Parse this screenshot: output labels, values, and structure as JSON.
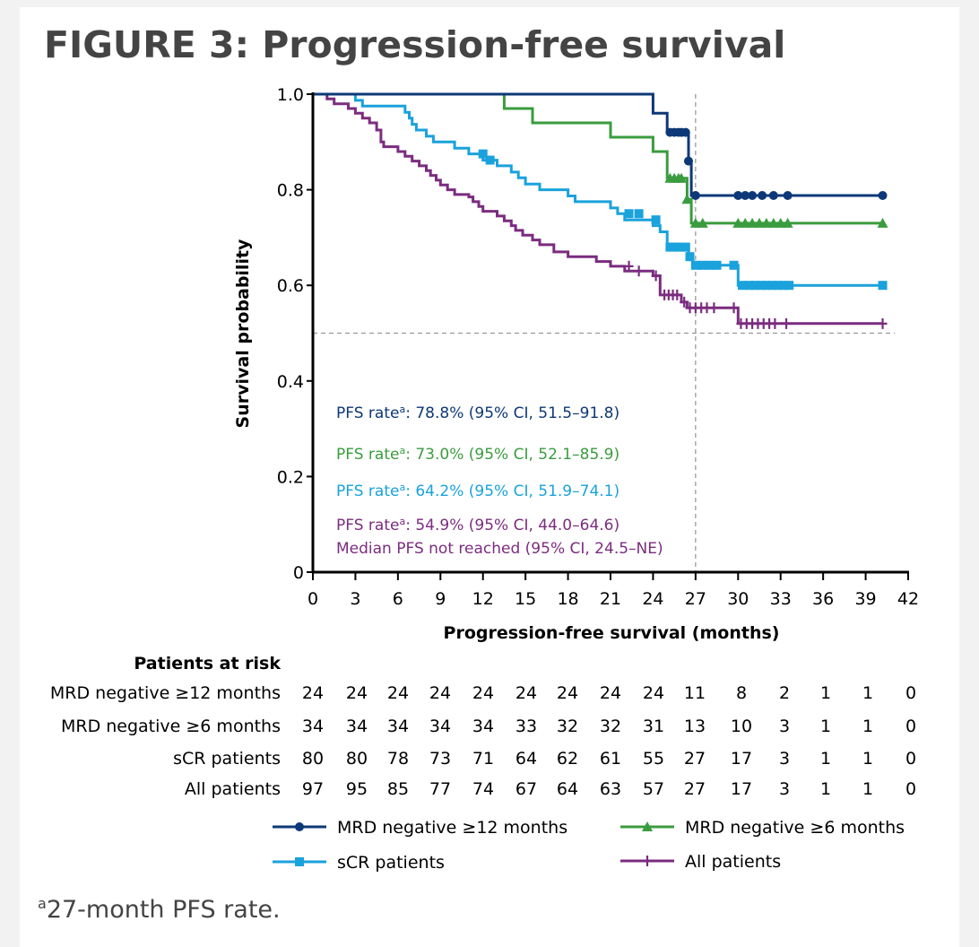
{
  "title": "FIGURE 3: Progression-free survival",
  "footnote": {
    "marker": "a",
    "text": "27-month PFS rate."
  },
  "colors": {
    "mrd12": "#0d3877",
    "mrd6": "#3a9c3e",
    "scr": "#1aa2dc",
    "all": "#7b2c7f",
    "axis": "#000000",
    "ref_line": "#999999",
    "text": "#000000"
  },
  "risk_table": {
    "header": "Patients at risk",
    "rows": [
      {
        "label": "MRD negative ≥12 months",
        "values": [
          "24",
          "24",
          "24",
          "24",
          "24",
          "24",
          "24",
          "24",
          "24",
          "11",
          "8",
          "2",
          "1",
          "1",
          "0"
        ]
      },
      {
        "label": "MRD negative ≥6 months",
        "values": [
          "34",
          "34",
          "34",
          "34",
          "34",
          "33",
          "32",
          "32",
          "31",
          "13",
          "10",
          "3",
          "1",
          "1",
          "0"
        ]
      },
      {
        "label": "sCR patients",
        "values": [
          "80",
          "80",
          "78",
          "73",
          "71",
          "64",
          "62",
          "61",
          "55",
          "27",
          "17",
          "3",
          "1",
          "1",
          "0"
        ]
      },
      {
        "label": "All patients",
        "values": [
          "97",
          "95",
          "85",
          "77",
          "74",
          "67",
          "64",
          "63",
          "57",
          "27",
          "17",
          "3",
          "1",
          "1",
          "0"
        ]
      }
    ]
  },
  "chart_data": {
    "type": "line",
    "subtype": "kaplan-meier",
    "xlabel": "Progression-free survival (months)",
    "ylabel": "Survival probability",
    "xlim": [
      0,
      42
    ],
    "ylim": [
      0,
      1.0
    ],
    "xticks": [
      0,
      3,
      6,
      9,
      12,
      15,
      18,
      21,
      24,
      27,
      30,
      33,
      36,
      39,
      42
    ],
    "yticks": [
      {
        "value": 0,
        "label": "0"
      },
      {
        "value": 0.2,
        "label": "0.2"
      },
      {
        "value": 0.4,
        "label": "0.4"
      },
      {
        "value": 0.6,
        "label": "0.6"
      },
      {
        "value": 0.8,
        "label": "0.8"
      },
      {
        "value": 1.0,
        "label": "1.0"
      }
    ],
    "grid": false,
    "reference_lines": [
      {
        "axis": "x",
        "value": 27,
        "style": "dashed"
      },
      {
        "axis": "y",
        "value": 0.5,
        "style": "dashed"
      }
    ],
    "annotations": [
      {
        "series": "MRD negative ≥12 months",
        "text": "PFS rate",
        "sup": "a",
        "rest": ": 78.8% (95% CI, 51.5–91.8)"
      },
      {
        "series": "MRD negative ≥6 months",
        "text": "PFS rate",
        "sup": "a",
        "rest": ": 73.0% (95% CI, 52.1–85.9)"
      },
      {
        "series": "sCR patients",
        "text": "PFS rate",
        "sup": "a",
        "rest": ": 64.2% (95% CI, 51.9–74.1)"
      },
      {
        "series": "All patients",
        "text": "PFS rate",
        "sup": "a",
        "rest": ": 54.9% (95% CI, 44.0–64.6)",
        "line2": "Median PFS not reached (95% CI, 24.5–NE)"
      }
    ],
    "legend_position": "bottom",
    "series": [
      {
        "name": "MRD negative ≥12 months",
        "color_key": "mrd12",
        "marker": "circle",
        "steps": [
          [
            0,
            1.0
          ],
          [
            24.0,
            1.0
          ],
          [
            24.0,
            0.96
          ],
          [
            25.0,
            0.96
          ],
          [
            25.0,
            0.92
          ],
          [
            26.5,
            0.92
          ],
          [
            26.5,
            0.86
          ],
          [
            26.7,
            0.86
          ],
          [
            26.7,
            0.788
          ],
          [
            40.2,
            0.788
          ]
        ],
        "censors": [
          [
            25.2,
            0.92
          ],
          [
            25.5,
            0.92
          ],
          [
            25.8,
            0.92
          ],
          [
            26.0,
            0.92
          ],
          [
            26.3,
            0.92
          ],
          [
            26.5,
            0.86
          ],
          [
            27.0,
            0.788
          ],
          [
            30.0,
            0.788
          ],
          [
            30.5,
            0.788
          ],
          [
            31.0,
            0.788
          ],
          [
            31.7,
            0.788
          ],
          [
            32.5,
            0.788
          ],
          [
            33.5,
            0.788
          ],
          [
            40.2,
            0.788
          ]
        ]
      },
      {
        "name": "MRD negative ≥6 months",
        "color_key": "mrd6",
        "marker": "triangle",
        "steps": [
          [
            0,
            1.0
          ],
          [
            13.5,
            1.0
          ],
          [
            13.5,
            0.97
          ],
          [
            15.5,
            0.97
          ],
          [
            15.5,
            0.94
          ],
          [
            21.0,
            0.94
          ],
          [
            21.0,
            0.91
          ],
          [
            24.0,
            0.91
          ],
          [
            24.0,
            0.88
          ],
          [
            25.0,
            0.88
          ],
          [
            25.0,
            0.824
          ],
          [
            26.4,
            0.824
          ],
          [
            26.4,
            0.78
          ],
          [
            26.7,
            0.78
          ],
          [
            26.7,
            0.73
          ],
          [
            40.2,
            0.73
          ]
        ],
        "censors": [
          [
            25.2,
            0.824
          ],
          [
            25.5,
            0.824
          ],
          [
            25.8,
            0.824
          ],
          [
            26.0,
            0.824
          ],
          [
            26.4,
            0.78
          ],
          [
            27.0,
            0.73
          ],
          [
            27.5,
            0.73
          ],
          [
            30.0,
            0.73
          ],
          [
            30.5,
            0.73
          ],
          [
            31.0,
            0.73
          ],
          [
            31.5,
            0.73
          ],
          [
            32.0,
            0.73
          ],
          [
            32.5,
            0.73
          ],
          [
            33.0,
            0.73
          ],
          [
            33.5,
            0.73
          ],
          [
            40.2,
            0.73
          ]
        ]
      },
      {
        "name": "sCR patients",
        "color_key": "scr",
        "marker": "square",
        "steps": [
          [
            0,
            1.0
          ],
          [
            3.0,
            1.0
          ],
          [
            3.0,
            0.987
          ],
          [
            3.5,
            0.987
          ],
          [
            3.5,
            0.975
          ],
          [
            6.5,
            0.975
          ],
          [
            6.5,
            0.962
          ],
          [
            6.8,
            0.962
          ],
          [
            6.8,
            0.95
          ],
          [
            7.0,
            0.95
          ],
          [
            7.0,
            0.937
          ],
          [
            7.3,
            0.937
          ],
          [
            7.3,
            0.925
          ],
          [
            8.0,
            0.925
          ],
          [
            8.0,
            0.912
          ],
          [
            8.5,
            0.912
          ],
          [
            8.5,
            0.9
          ],
          [
            10.0,
            0.9
          ],
          [
            10.0,
            0.887
          ],
          [
            11.0,
            0.887
          ],
          [
            11.0,
            0.875
          ],
          [
            12.0,
            0.875
          ],
          [
            12.0,
            0.862
          ],
          [
            13.0,
            0.862
          ],
          [
            13.0,
            0.85
          ],
          [
            14.0,
            0.85
          ],
          [
            14.0,
            0.837
          ],
          [
            14.5,
            0.837
          ],
          [
            14.5,
            0.825
          ],
          [
            15.0,
            0.825
          ],
          [
            15.0,
            0.812
          ],
          [
            16.0,
            0.812
          ],
          [
            16.0,
            0.8
          ],
          [
            18.0,
            0.8
          ],
          [
            18.0,
            0.787
          ],
          [
            18.5,
            0.787
          ],
          [
            18.5,
            0.775
          ],
          [
            21.0,
            0.775
          ],
          [
            21.0,
            0.762
          ],
          [
            21.5,
            0.762
          ],
          [
            21.5,
            0.75
          ],
          [
            22.0,
            0.75
          ],
          [
            22.0,
            0.737
          ],
          [
            24.0,
            0.737
          ],
          [
            24.0,
            0.725
          ],
          [
            24.5,
            0.725
          ],
          [
            24.5,
            0.712
          ],
          [
            25.0,
            0.712
          ],
          [
            25.0,
            0.68
          ],
          [
            26.5,
            0.68
          ],
          [
            26.5,
            0.66
          ],
          [
            26.8,
            0.66
          ],
          [
            26.8,
            0.642
          ],
          [
            30.0,
            0.642
          ],
          [
            30.0,
            0.6
          ],
          [
            40.2,
            0.6
          ]
        ],
        "censors": [
          [
            12.0,
            0.875
          ],
          [
            12.5,
            0.862
          ],
          [
            22.3,
            0.75
          ],
          [
            23.0,
            0.75
          ],
          [
            24.2,
            0.737
          ],
          [
            25.2,
            0.68
          ],
          [
            25.5,
            0.68
          ],
          [
            25.8,
            0.68
          ],
          [
            26.0,
            0.68
          ],
          [
            26.3,
            0.68
          ],
          [
            26.6,
            0.66
          ],
          [
            27.0,
            0.642
          ],
          [
            27.5,
            0.642
          ],
          [
            28.0,
            0.642
          ],
          [
            28.5,
            0.642
          ],
          [
            29.7,
            0.642
          ],
          [
            30.3,
            0.6
          ],
          [
            30.8,
            0.6
          ],
          [
            31.2,
            0.6
          ],
          [
            31.6,
            0.6
          ],
          [
            32.0,
            0.6
          ],
          [
            32.4,
            0.6
          ],
          [
            32.8,
            0.6
          ],
          [
            33.2,
            0.6
          ],
          [
            33.6,
            0.6
          ],
          [
            40.2,
            0.6
          ]
        ]
      },
      {
        "name": "All patients",
        "color_key": "all",
        "marker": "plus",
        "steps": [
          [
            0,
            1.0
          ],
          [
            1.0,
            1.0
          ],
          [
            1.0,
            0.99
          ],
          [
            1.5,
            0.99
          ],
          [
            1.5,
            0.98
          ],
          [
            2.5,
            0.98
          ],
          [
            2.5,
            0.97
          ],
          [
            3.0,
            0.97
          ],
          [
            3.0,
            0.96
          ],
          [
            3.5,
            0.96
          ],
          [
            3.5,
            0.95
          ],
          [
            4.0,
            0.95
          ],
          [
            4.0,
            0.94
          ],
          [
            4.5,
            0.94
          ],
          [
            4.5,
            0.925
          ],
          [
            4.8,
            0.925
          ],
          [
            4.8,
            0.9
          ],
          [
            5.0,
            0.9
          ],
          [
            5.0,
            0.89
          ],
          [
            6.0,
            0.89
          ],
          [
            6.0,
            0.88
          ],
          [
            6.5,
            0.88
          ],
          [
            6.5,
            0.87
          ],
          [
            7.0,
            0.87
          ],
          [
            7.0,
            0.86
          ],
          [
            7.5,
            0.86
          ],
          [
            7.5,
            0.85
          ],
          [
            8.0,
            0.85
          ],
          [
            8.0,
            0.84
          ],
          [
            8.3,
            0.84
          ],
          [
            8.3,
            0.83
          ],
          [
            8.7,
            0.83
          ],
          [
            8.7,
            0.82
          ],
          [
            9.0,
            0.82
          ],
          [
            9.0,
            0.81
          ],
          [
            9.5,
            0.81
          ],
          [
            9.5,
            0.8
          ],
          [
            10.0,
            0.8
          ],
          [
            10.0,
            0.79
          ],
          [
            11.0,
            0.79
          ],
          [
            11.0,
            0.785
          ],
          [
            11.3,
            0.785
          ],
          [
            11.3,
            0.775
          ],
          [
            11.7,
            0.775
          ],
          [
            11.7,
            0.765
          ],
          [
            12.0,
            0.765
          ],
          [
            12.0,
            0.755
          ],
          [
            13.0,
            0.755
          ],
          [
            13.0,
            0.745
          ],
          [
            13.5,
            0.745
          ],
          [
            13.5,
            0.735
          ],
          [
            14.0,
            0.735
          ],
          [
            14.0,
            0.725
          ],
          [
            14.3,
            0.725
          ],
          [
            14.3,
            0.715
          ],
          [
            14.8,
            0.715
          ],
          [
            14.8,
            0.705
          ],
          [
            15.5,
            0.705
          ],
          [
            15.5,
            0.695
          ],
          [
            16.0,
            0.695
          ],
          [
            16.0,
            0.685
          ],
          [
            17.0,
            0.685
          ],
          [
            17.0,
            0.67
          ],
          [
            18.0,
            0.67
          ],
          [
            18.0,
            0.66
          ],
          [
            20.0,
            0.66
          ],
          [
            20.0,
            0.65
          ],
          [
            21.0,
            0.65
          ],
          [
            21.0,
            0.64
          ],
          [
            22.0,
            0.64
          ],
          [
            22.0,
            0.63
          ],
          [
            24.0,
            0.63
          ],
          [
            24.0,
            0.62
          ],
          [
            24.5,
            0.62
          ],
          [
            24.5,
            0.58
          ],
          [
            26.0,
            0.58
          ],
          [
            26.0,
            0.565
          ],
          [
            26.4,
            0.565
          ],
          [
            26.4,
            0.553
          ],
          [
            30.0,
            0.553
          ],
          [
            30.0,
            0.52
          ],
          [
            40.2,
            0.52
          ]
        ],
        "censors": [
          [
            22.3,
            0.64
          ],
          [
            23.0,
            0.63
          ],
          [
            24.2,
            0.62
          ],
          [
            24.8,
            0.58
          ],
          [
            25.1,
            0.58
          ],
          [
            25.4,
            0.58
          ],
          [
            25.7,
            0.58
          ],
          [
            26.2,
            0.565
          ],
          [
            26.6,
            0.553
          ],
          [
            27.0,
            0.553
          ],
          [
            27.4,
            0.553
          ],
          [
            27.8,
            0.553
          ],
          [
            28.3,
            0.553
          ],
          [
            29.7,
            0.553
          ],
          [
            30.2,
            0.52
          ],
          [
            30.6,
            0.52
          ],
          [
            31.0,
            0.52
          ],
          [
            31.4,
            0.52
          ],
          [
            31.8,
            0.52
          ],
          [
            32.2,
            0.52
          ],
          [
            32.6,
            0.52
          ],
          [
            33.4,
            0.52
          ],
          [
            40.2,
            0.52
          ]
        ]
      }
    ]
  }
}
